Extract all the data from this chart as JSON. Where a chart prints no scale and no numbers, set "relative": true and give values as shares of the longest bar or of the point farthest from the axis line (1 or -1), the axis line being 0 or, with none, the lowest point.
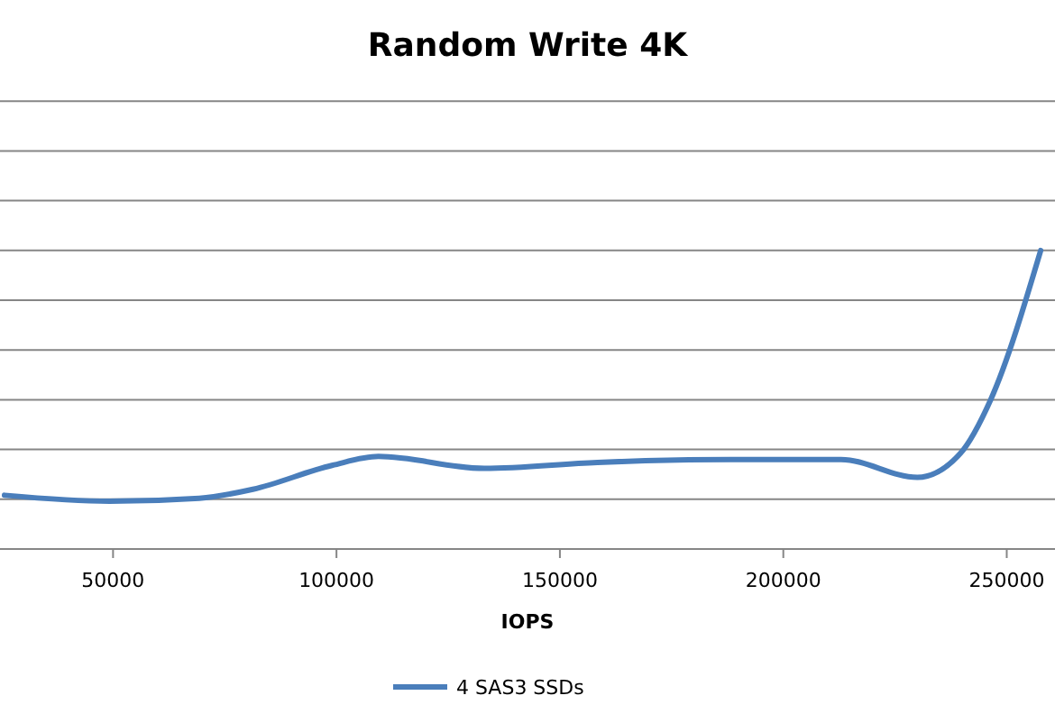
{
  "chart_data": {
    "type": "line",
    "title": "Random Write 4K",
    "xlabel": "IOPS",
    "relative": true,
    "grid": "y",
    "legend": "bottom",
    "marker": "none",
    "line_style": "solid",
    "xlim": [
      24700,
      260800
    ],
    "xticks": [
      50000,
      100000,
      150000,
      200000,
      250000
    ],
    "series": [
      {
        "name": "4 SAS3 SSDs",
        "color": "#4a7ebb",
        "x": [
          25700,
          49200,
          69300,
          81300,
          99000,
          109400,
          133100,
          158400,
          188200,
          212900,
          230000,
          239600,
          246400,
          257600
        ],
        "values": [
          0.18,
          0.16,
          0.17,
          0.2,
          0.28,
          0.31,
          0.27,
          0.29,
          0.3,
          0.3,
          0.24,
          0.32,
          0.5,
          1.0
        ]
      }
    ]
  }
}
